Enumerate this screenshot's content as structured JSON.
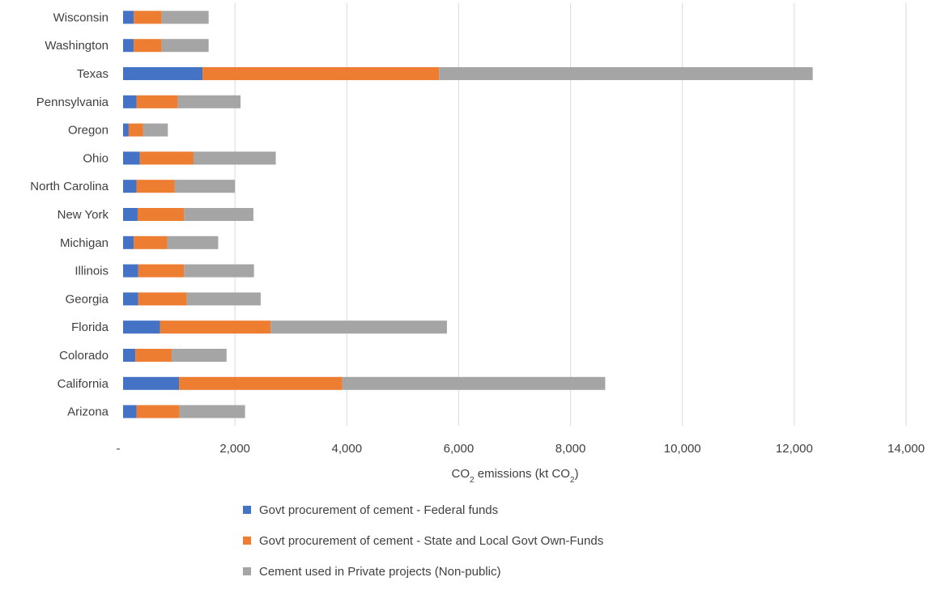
{
  "chart_data": {
    "type": "bar",
    "orientation": "horizontal",
    "stacked": true,
    "categories": [
      "Wisconsin",
      "Washington",
      "Texas",
      "Pennsylvania",
      "Oregon",
      "Ohio",
      "North Carolina",
      "New York",
      "Michigan",
      "Illinois",
      "Georgia",
      "Florida",
      "Colorado",
      "California",
      "Arizona"
    ],
    "series": [
      {
        "name": "Govt procurement of cement - Federal funds",
        "color": "#4472C4",
        "values": [
          190,
          190,
          1420,
          240,
          100,
          300,
          240,
          260,
          190,
          270,
          270,
          660,
          220,
          1000,
          240
        ]
      },
      {
        "name": "Govt procurement of cement - State and Local Govt Own-Funds",
        "color": "#ED7D31",
        "values": [
          500,
          500,
          4230,
          740,
          260,
          960,
          680,
          830,
          600,
          820,
          870,
          1980,
          650,
          2920,
          770
        ]
      },
      {
        "name": "Cement used in Private projects (Non-public)",
        "color": "#A5A5A5",
        "values": [
          840,
          840,
          6680,
          1120,
          440,
          1470,
          1080,
          1240,
          910,
          1250,
          1320,
          3150,
          980,
          4700,
          1170
        ]
      }
    ],
    "x_ticks": [
      "-",
      "2,000",
      "4,000",
      "6,000",
      "8,000",
      "10,000",
      "12,000",
      "14,000"
    ],
    "x_tick_values": [
      0,
      2000,
      4000,
      6000,
      8000,
      10000,
      12000,
      14000
    ],
    "xlim": [
      0,
      14000
    ],
    "xlabel_parts": [
      "CO",
      "2",
      " emissions (kt CO",
      "2",
      ")"
    ],
    "grid": "vertical",
    "legend_position": "bottom"
  }
}
